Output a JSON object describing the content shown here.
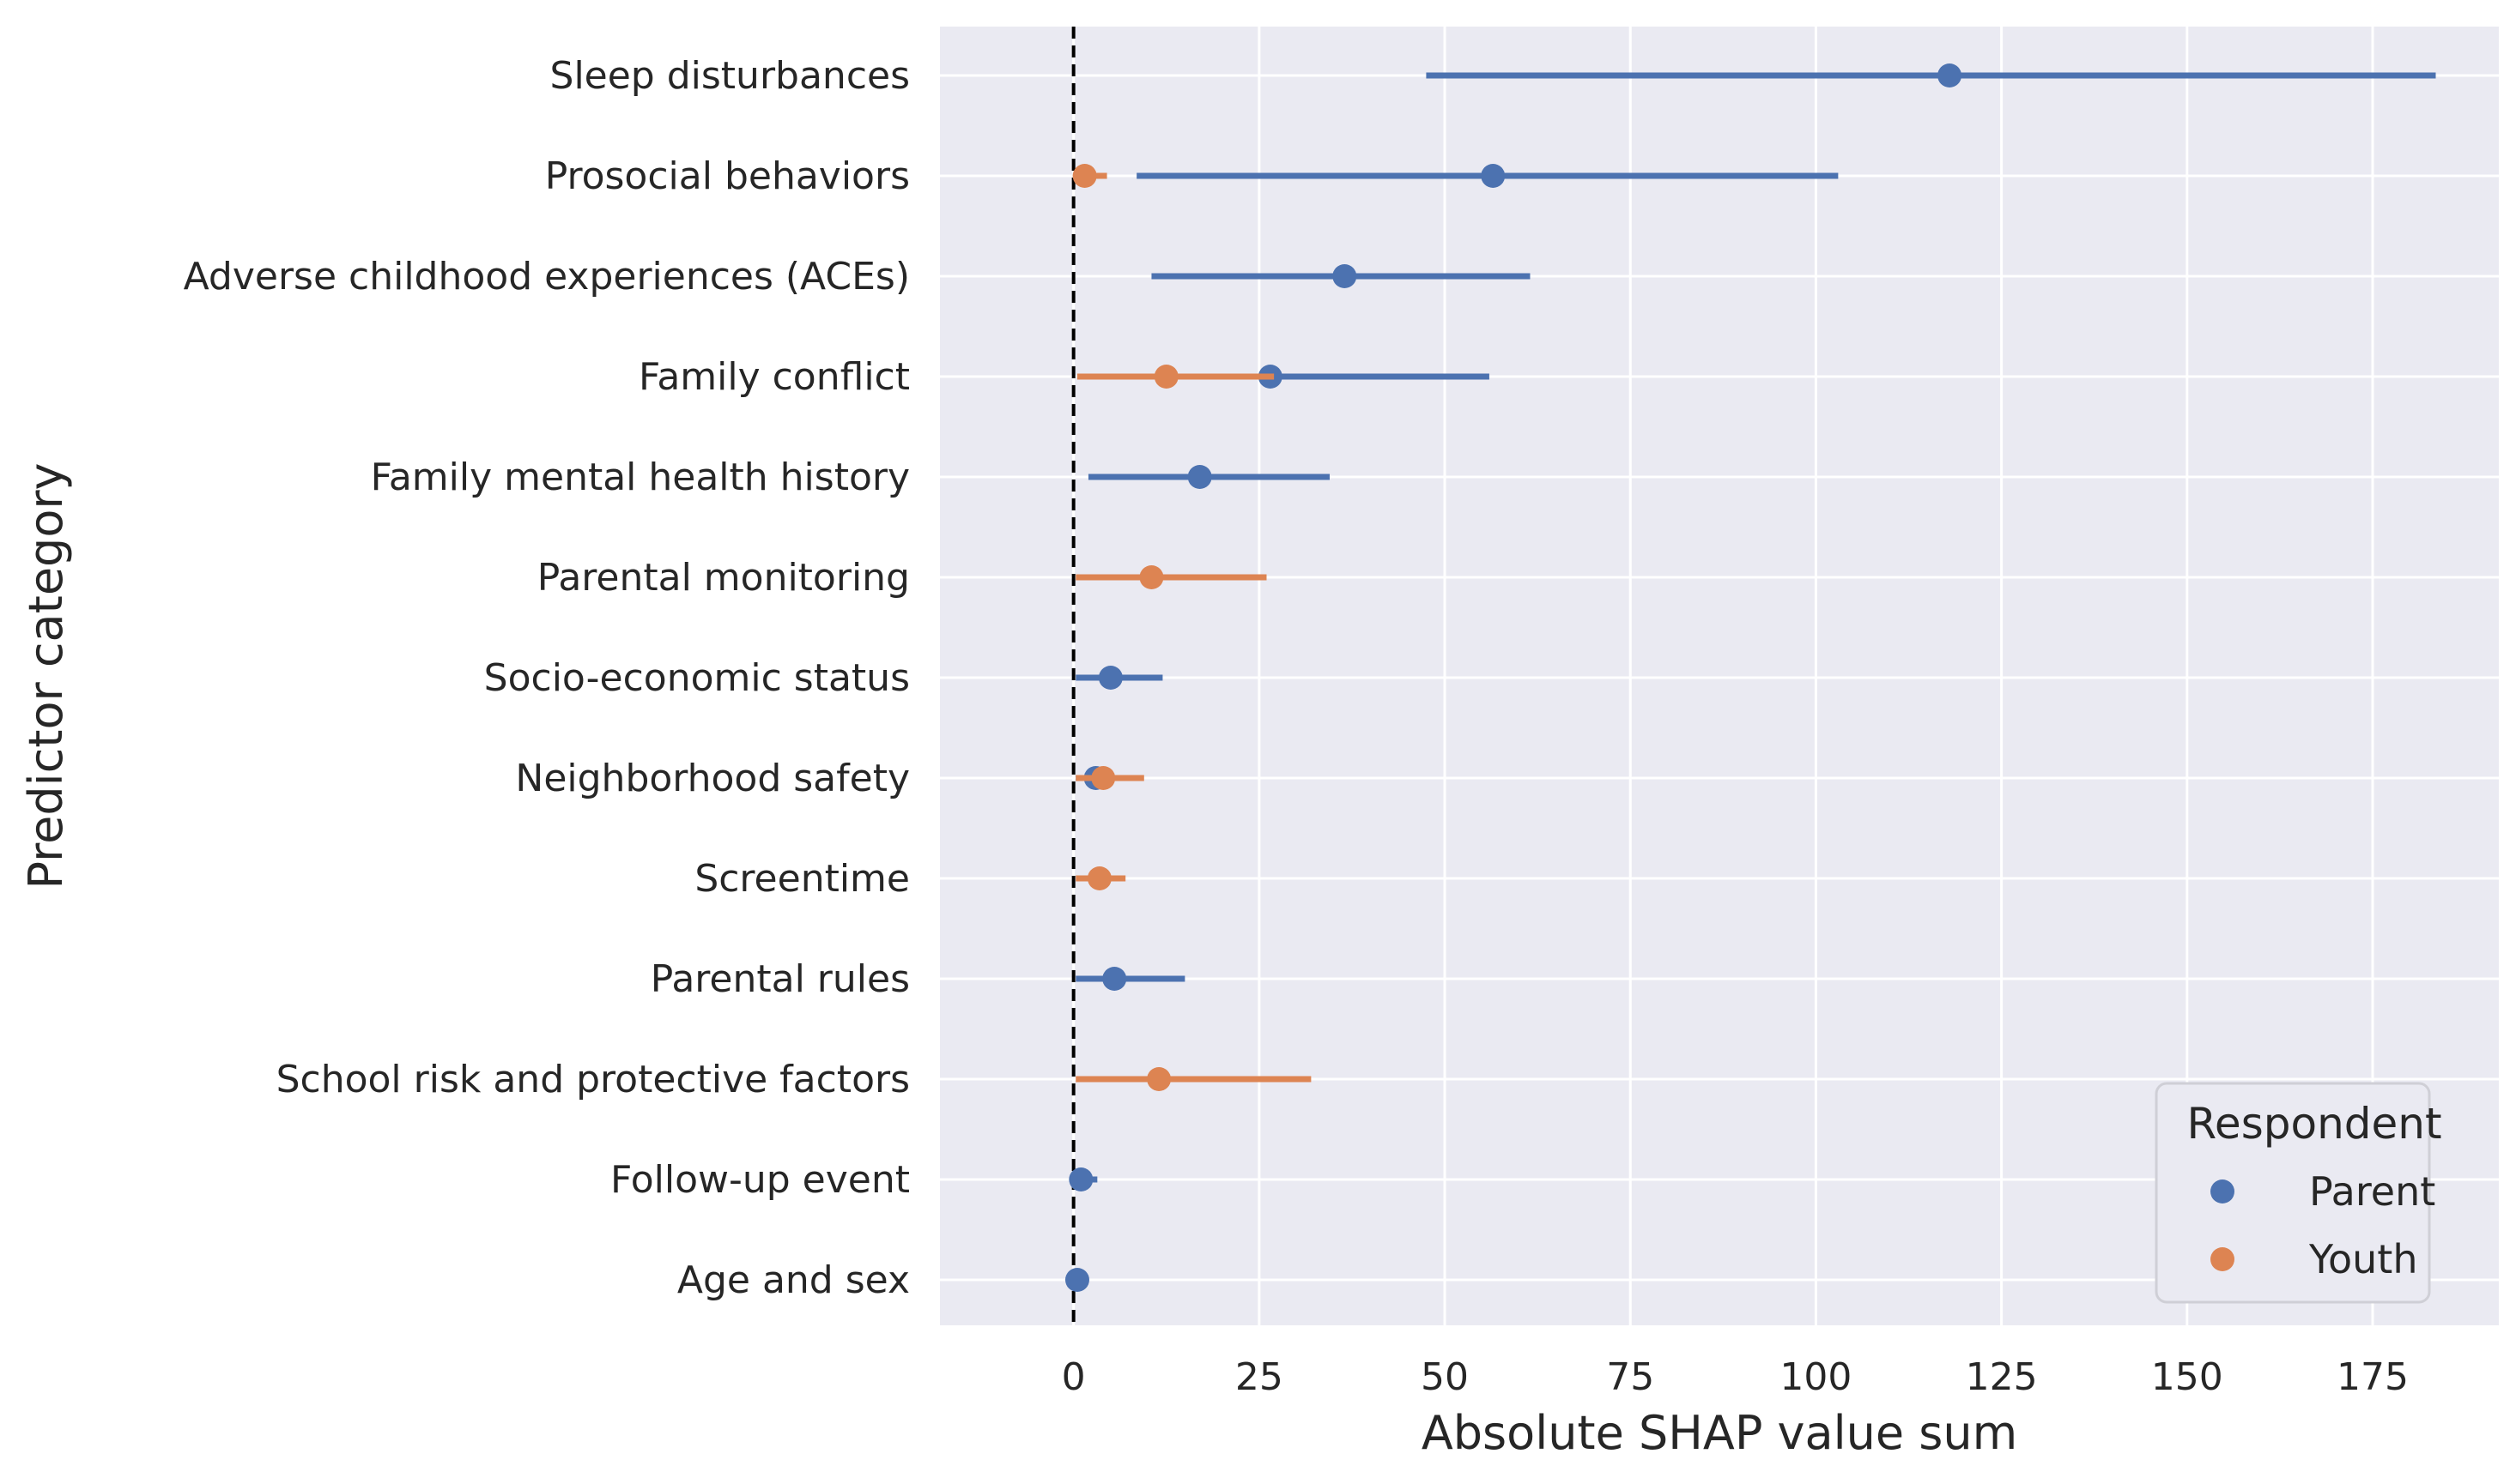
{
  "chart_data": {
    "type": "scatter",
    "orientation": "horizontal",
    "title": "",
    "xlabel": "Absolute SHAP value sum",
    "ylabel": "Predictor category",
    "xlim": [
      -18,
      192
    ],
    "xticks": [
      0,
      25,
      50,
      75,
      100,
      125,
      150,
      175
    ],
    "grid": true,
    "reference_line": {
      "x": 0,
      "style": "dashed"
    },
    "legend": {
      "title": "Respondent",
      "placement": "bottom-right",
      "items": [
        {
          "name": "Parent",
          "color": "#4c72b0"
        },
        {
          "name": "Youth",
          "color": "#dd8452"
        }
      ]
    },
    "categories": [
      "Sleep disturbances",
      "Prosocial behaviors",
      "Adverse childhood experiences (ACEs)",
      "Family conflict",
      "Family mental health history",
      "Parental monitoring",
      "Socio-economic status",
      "Neighborhood safety",
      "Screentime",
      "Parental rules",
      "School risk and protective factors",
      "Follow-up event",
      "Age and sex"
    ],
    "series": [
      {
        "name": "Parent",
        "color": "#4c72b0",
        "points": [
          {
            "category": "Sleep disturbances",
            "value": 118,
            "low": 47.5,
            "high": 183.5
          },
          {
            "category": "Prosocial behaviors",
            "value": 56.5,
            "low": 8.5,
            "high": 103
          },
          {
            "category": "Adverse childhood experiences (ACEs)",
            "value": 36.5,
            "low": 10.5,
            "high": 61.5
          },
          {
            "category": "Family conflict",
            "value": 26.5,
            "low": 0.5,
            "high": 56
          },
          {
            "category": "Family mental health history",
            "value": 17,
            "low": 2,
            "high": 34.5
          },
          {
            "category": "Socio-economic status",
            "value": 5,
            "low": 0.3,
            "high": 12
          },
          {
            "category": "Neighborhood safety",
            "value": 3,
            "low": 0.3,
            "high": 6
          },
          {
            "category": "Parental rules",
            "value": 5.5,
            "low": 0.3,
            "high": 15
          },
          {
            "category": "Follow-up event",
            "value": 1,
            "low": 0.1,
            "high": 3.2
          },
          {
            "category": "Age and sex",
            "value": 0.5,
            "low": 0.05,
            "high": 1.2
          }
        ]
      },
      {
        "name": "Youth",
        "color": "#dd8452",
        "points": [
          {
            "category": "Prosocial behaviors",
            "value": 1.5,
            "low": 0.2,
            "high": 4.5
          },
          {
            "category": "Family conflict",
            "value": 12.5,
            "low": 0.5,
            "high": 27
          },
          {
            "category": "Parental monitoring",
            "value": 10.5,
            "low": 0.3,
            "high": 26
          },
          {
            "category": "Neighborhood safety",
            "value": 4,
            "low": 0.3,
            "high": 9.5
          },
          {
            "category": "Screentime",
            "value": 3.5,
            "low": 0.3,
            "high": 7
          },
          {
            "category": "School risk and protective factors",
            "value": 11.5,
            "low": 0.3,
            "high": 32
          }
        ]
      }
    ]
  }
}
